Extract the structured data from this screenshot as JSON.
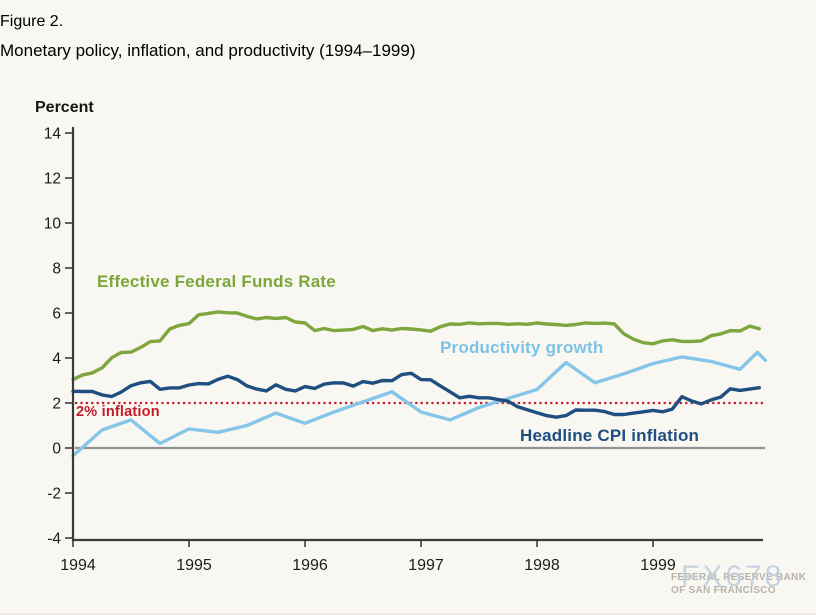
{
  "header": {
    "figure_label": "Figure 2.",
    "title": "Monetary policy, inflation, and productivity (1994–1999)"
  },
  "chart_data": {
    "type": "line",
    "title": "Figure 2. Monetary policy, inflation, and productivity (1994–1999)",
    "ylabel": "Percent",
    "ylim": [
      -4,
      14
    ],
    "ytick_step": 2,
    "xlim": [
      1994,
      2000
    ],
    "x_ticks": [
      "1994",
      "1995",
      "1996",
      "1997",
      "1998",
      "1999"
    ],
    "grid": false,
    "legend_position": "inline-labels",
    "reference_lines": [
      {
        "label": "2% inflation",
        "value": 2,
        "color": "#c41a28",
        "style": "dotted"
      },
      {
        "label": "zero-line",
        "value": 0,
        "color": "#919191",
        "style": "solid"
      }
    ],
    "series": [
      {
        "name": "Effective Federal Funds Rate",
        "color": "#7fa53f",
        "x_start": 1994,
        "x_step_months": 1,
        "values": [
          3.05,
          3.25,
          3.34,
          3.56,
          4.01,
          4.25,
          4.26,
          4.47,
          4.73,
          4.76,
          5.29,
          5.45,
          5.53,
          5.92,
          5.98,
          6.05,
          6.01,
          6.0,
          5.85,
          5.74,
          5.8,
          5.76,
          5.8,
          5.6,
          5.56,
          5.22,
          5.31,
          5.22,
          5.24,
          5.27,
          5.4,
          5.22,
          5.3,
          5.24,
          5.31,
          5.29,
          5.25,
          5.19,
          5.39,
          5.51,
          5.5,
          5.56,
          5.52,
          5.54,
          5.54,
          5.5,
          5.52,
          5.5,
          5.56,
          5.51,
          5.49,
          5.45,
          5.49,
          5.56,
          5.54,
          5.55,
          5.51,
          5.07,
          4.83,
          4.68,
          4.63,
          4.76,
          4.81,
          4.74,
          4.74,
          4.76,
          4.99,
          5.07,
          5.22,
          5.2,
          5.42,
          5.3
        ]
      },
      {
        "name": "Productivity growth",
        "color": "#85c6e8",
        "x": [
          1994.0,
          1994.25,
          1994.5,
          1994.75,
          1995.0,
          1995.25,
          1995.5,
          1995.75,
          1996.0,
          1996.25,
          1996.5,
          1996.75,
          1997.0,
          1997.25,
          1997.5,
          1997.75,
          1998.0,
          1998.25,
          1998.5,
          1998.75,
          1999.0,
          1999.25,
          1999.5,
          1999.75,
          1999.9,
          1999.97
        ],
        "values": [
          -0.35,
          0.8,
          1.25,
          0.2,
          0.85,
          0.7,
          1.0,
          1.55,
          1.1,
          1.6,
          2.05,
          2.5,
          1.6,
          1.25,
          1.8,
          2.2,
          2.6,
          3.8,
          2.9,
          3.3,
          3.75,
          4.05,
          3.85,
          3.5,
          4.25,
          3.9
        ]
      },
      {
        "name": "Headline CPI inflation",
        "color": "#1e4f80",
        "x_start": 1994,
        "x_step_months": 1,
        "values": [
          2.52,
          2.51,
          2.51,
          2.36,
          2.29,
          2.49,
          2.77,
          2.9,
          2.96,
          2.61,
          2.67,
          2.67,
          2.8,
          2.86,
          2.85,
          3.05,
          3.19,
          3.04,
          2.76,
          2.62,
          2.54,
          2.81,
          2.61,
          2.54,
          2.73,
          2.65,
          2.84,
          2.9,
          2.89,
          2.75,
          2.95,
          2.88,
          3.0,
          2.99,
          3.26,
          3.32,
          3.04,
          3.03,
          2.76,
          2.5,
          2.23,
          2.3,
          2.23,
          2.23,
          2.15,
          2.08,
          1.83,
          1.7,
          1.57,
          1.44,
          1.37,
          1.44,
          1.69,
          1.68,
          1.68,
          1.62,
          1.49,
          1.49,
          1.55,
          1.61,
          1.67,
          1.61,
          1.73,
          2.28,
          2.09,
          1.96,
          2.14,
          2.26,
          2.63,
          2.56,
          2.62,
          2.68
        ]
      }
    ]
  },
  "watermark": {
    "brand": "FX678",
    "org_line1": "FEDERAL RESERVE BANK",
    "org_line2": "OF SAN FRANCISCO"
  }
}
